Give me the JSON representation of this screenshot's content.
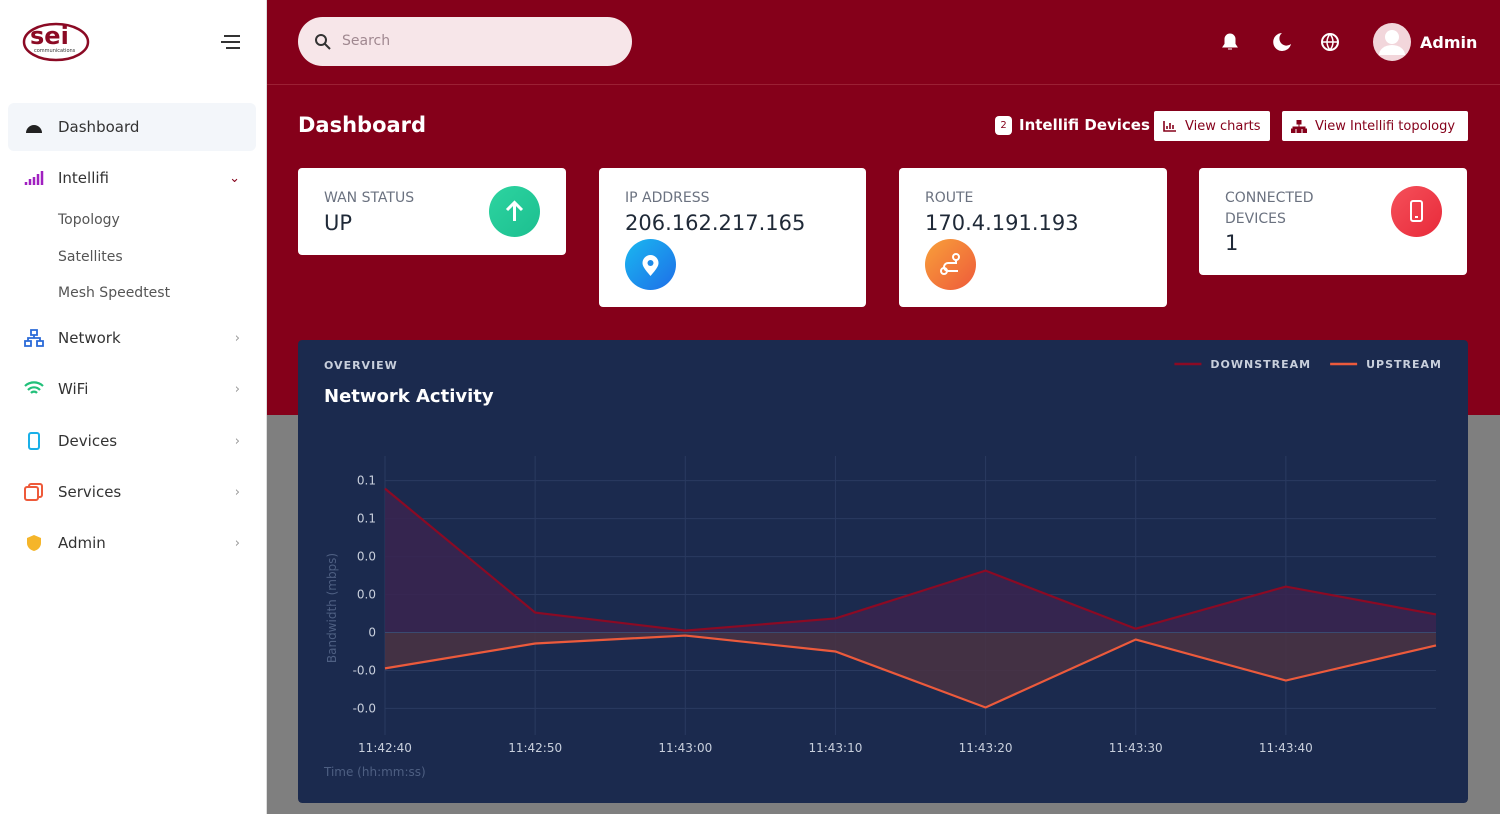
{
  "sidebar": {
    "logo": {
      "name": "sei",
      "tagline": "communications"
    },
    "menu": [
      {
        "label": "Dashboard"
      },
      {
        "label": "Intellifi",
        "children": [
          "Topology",
          "Satellites",
          "Mesh Speedtest"
        ]
      },
      {
        "label": "Network"
      },
      {
        "label": "WiFi"
      },
      {
        "label": "Devices"
      },
      {
        "label": "Services"
      },
      {
        "label": "Admin"
      }
    ]
  },
  "header": {
    "search_placeholder": "Search",
    "user": "Admin"
  },
  "page": {
    "title": "Dashboard",
    "device_count": 2,
    "device_label": "Intellifi Devices",
    "buttons": [
      "View charts",
      "View Intellifi topology"
    ]
  },
  "cards": [
    {
      "label": "WAN STATUS",
      "value": "UP"
    },
    {
      "label": "IP ADDRESS",
      "value": "206.162.217.165"
    },
    {
      "label": "ROUTE",
      "value": "170.4.191.193"
    },
    {
      "label": "CONNECTED DEVICES",
      "value": 1
    }
  ],
  "chart_data": {
    "type": "line",
    "subtitle": "OVERVIEW",
    "title": "Network Activity",
    "y_label": "Bandwidth (mbps)",
    "x_label": "Time (hh:mm:ss)",
    "categories": [
      "11:42:40",
      "11:42:50",
      "11:43:00",
      "11:43:10",
      "11:43:20",
      "11:43:30",
      "11:43:40",
      null
    ],
    "series": [
      {
        "name": "DOWNSTREAM",
        "color": "#8b0a24",
        "fill": "#3a2550",
        "values": [
          0.0758,
          0.0105,
          0.001,
          0.0074,
          0.0326,
          0.002,
          0.0242,
          0.0095
        ]
      },
      {
        "name": "UPSTREAM",
        "color": "#ec5a3c",
        "fill": "#4a3343",
        "values": [
          -0.0189,
          -0.0058,
          -0.0016,
          -0.01,
          -0.0395,
          -0.0037,
          -0.0253,
          -0.0068
        ]
      }
    ],
    "ylim": [
      -0.054,
      0.093
    ],
    "yticks": [
      {
        "value": 0.08,
        "label": "0.1"
      },
      {
        "value": 0.06,
        "label": "0.1"
      },
      {
        "value": 0.04,
        "label": "0.0"
      },
      {
        "value": 0.02,
        "label": "0.0"
      },
      0,
      {
        "value": -0.02,
        "label": "-0.0"
      },
      {
        "value": -0.04,
        "label": "-0.0"
      }
    ],
    "grid": true,
    "legend": "top-right"
  }
}
